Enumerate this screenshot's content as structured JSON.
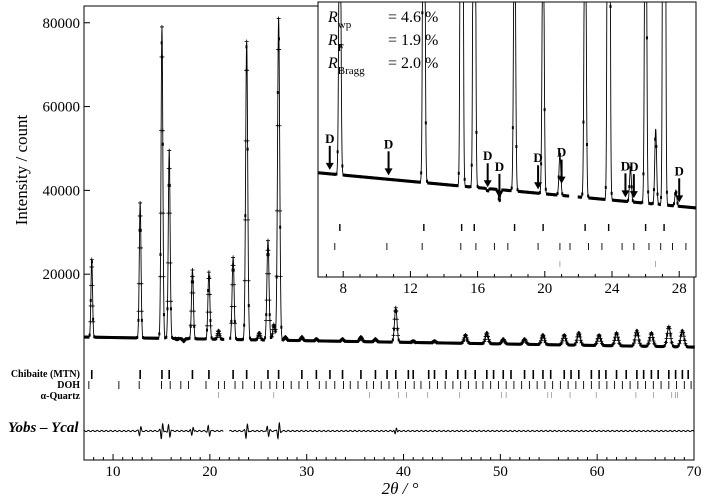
{
  "chart_data": {
    "type": "scatter",
    "xlabel": "2θ / °",
    "ylabel": "Intensity / count",
    "xlim": [
      7,
      70
    ],
    "ylim": [
      0,
      84000
    ],
    "x_ticks": [
      10,
      20,
      30,
      40,
      50,
      60,
      70
    ],
    "y_ticks": [
      20000,
      40000,
      60000,
      80000
    ],
    "background_start": 5000,
    "background_end": 2600,
    "peaks": [
      {
        "x": 7.8,
        "y": 23500
      },
      {
        "x": 12.8,
        "y": 37000
      },
      {
        "x": 15.05,
        "y": 79000
      },
      {
        "x": 15.8,
        "y": 49500
      },
      {
        "x": 16.6,
        "y": 4500
      },
      {
        "x": 17.3,
        "y": 4000
      },
      {
        "x": 18.2,
        "y": 21000
      },
      {
        "x": 19.9,
        "y": 20500
      },
      {
        "x": 20.9,
        "y": 6500
      },
      {
        "x": 22.4,
        "y": 24000
      },
      {
        "x": 23.8,
        "y": 75500
      },
      {
        "x": 25.1,
        "y": 6000
      },
      {
        "x": 26.0,
        "y": 28000
      },
      {
        "x": 26.6,
        "y": 8000
      },
      {
        "x": 27.1,
        "y": 81000
      },
      {
        "x": 27.8,
        "y": 5000
      },
      {
        "x": 29.5,
        "y": 5000
      },
      {
        "x": 31.0,
        "y": 4500
      },
      {
        "x": 33.7,
        "y": 4500
      },
      {
        "x": 35.6,
        "y": 5000
      },
      {
        "x": 37.1,
        "y": 4500
      },
      {
        "x": 39.2,
        "y": 12000
      },
      {
        "x": 41.0,
        "y": 4000
      },
      {
        "x": 43.2,
        "y": 4000
      },
      {
        "x": 46.4,
        "y": 5500
      },
      {
        "x": 48.6,
        "y": 6000
      },
      {
        "x": 50.3,
        "y": 4500
      },
      {
        "x": 52.5,
        "y": 4500
      },
      {
        "x": 54.4,
        "y": 5500
      },
      {
        "x": 56.6,
        "y": 5500
      },
      {
        "x": 58.1,
        "y": 6000
      },
      {
        "x": 60.2,
        "y": 5500
      },
      {
        "x": 62.0,
        "y": 6000
      },
      {
        "x": 64.1,
        "y": 6500
      },
      {
        "x": 65.6,
        "y": 6000
      },
      {
        "x": 67.4,
        "y": 7500
      },
      {
        "x": 68.8,
        "y": 6500
      }
    ],
    "excluded_region": [
      21.4,
      22.0
    ],
    "phases": [
      {
        "name": "Chibaite (MTN)",
        "positions": [
          7.8,
          12.8,
          15.05,
          15.8,
          18.2,
          19.9,
          22.4,
          23.8,
          26.0,
          27.1,
          29.5,
          31.0,
          32.4,
          33.7,
          35.6,
          37.1,
          38.3,
          39.2,
          40.5,
          41.0,
          42.6,
          43.2,
          44.4,
          45.6,
          46.4,
          47.4,
          48.6,
          49.3,
          50.3,
          51.1,
          52.5,
          53.4,
          54.4,
          55.2,
          56.6,
          57.3,
          58.1,
          59.4,
          60.2,
          60.9,
          62.0,
          63.0,
          64.1,
          64.8,
          65.6,
          66.3,
          67.4,
          68.1,
          68.8,
          69.4
        ]
      },
      {
        "name": "DOH",
        "positions": [
          7.5,
          10.6,
          12.7,
          15.0,
          15.9,
          17.0,
          17.8,
          19.6,
          20.9,
          21.5,
          22.6,
          23.4,
          24.6,
          25.3,
          26.2,
          26.9,
          27.6,
          28.4,
          29.2,
          30.1,
          31.3,
          32.0,
          32.9,
          33.8,
          34.5,
          35.3,
          36.2,
          36.9,
          37.7,
          38.5,
          39.4,
          40.2,
          41.1,
          41.8,
          42.7,
          43.5,
          44.3,
          45.1,
          45.9,
          46.7,
          47.5,
          48.2,
          49.0,
          49.8,
          50.6,
          51.4,
          52.2,
          53.0,
          53.8,
          54.6,
          55.4,
          56.2,
          57.0,
          57.8,
          58.6,
          59.4,
          60.2,
          61.0,
          61.8,
          62.6,
          63.4,
          64.2,
          65.0,
          65.8,
          66.6,
          67.4,
          68.2,
          69.0,
          69.7
        ]
      },
      {
        "name": "α-Quartz",
        "positions": [
          20.9,
          26.6,
          36.5,
          39.5,
          40.3,
          42.5,
          45.8,
          50.1,
          50.6,
          54.9,
          55.3,
          57.2,
          59.9,
          64.0,
          65.8,
          67.7,
          68.1,
          68.3
        ]
      }
    ],
    "difference_label": "Yobs – Ycal",
    "difference_spikes": [
      {
        "x": 12.8,
        "d": 5
      },
      {
        "x": 15.05,
        "d": 9
      },
      {
        "x": 15.8,
        "d": -7
      },
      {
        "x": 18.2,
        "d": 5
      },
      {
        "x": 19.9,
        "d": -6
      },
      {
        "x": 23.8,
        "d": 8
      },
      {
        "x": 26.0,
        "d": -6
      },
      {
        "x": 27.1,
        "d": 9
      },
      {
        "x": 39.2,
        "d": 4
      }
    ],
    "inset": {
      "xlim": [
        6.5,
        29
      ],
      "x_ticks": [
        8,
        12,
        16,
        20,
        24,
        28
      ],
      "ylim": [
        0,
        4500
      ],
      "r_factors": [
        {
          "symbol": "R",
          "sub": "wp",
          "value": "= 4.6 %"
        },
        {
          "symbol": "R",
          "sub": "F",
          "value": "= 1.9 %"
        },
        {
          "symbol": "R",
          "sub": "Bragg",
          "value": "= 2.0 %"
        }
      ],
      "d_markers": [
        7.2,
        10.7,
        16.6,
        17.3,
        19.6,
        21.0,
        24.8,
        25.3,
        28.0
      ],
      "d_label": "D"
    }
  }
}
